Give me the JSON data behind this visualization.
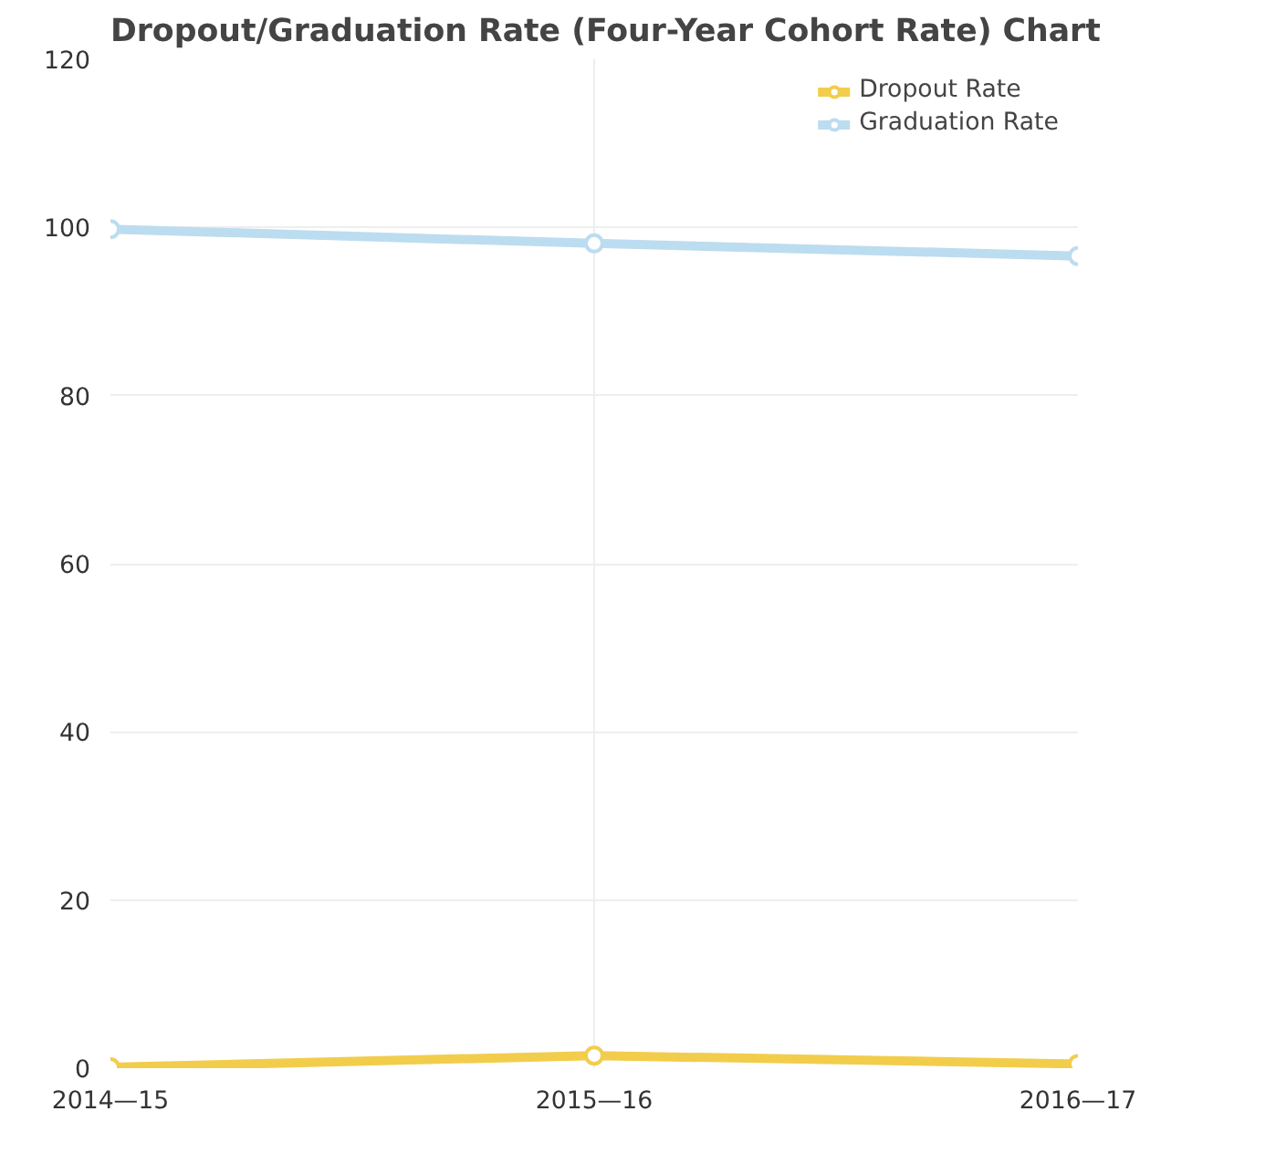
{
  "chart_data": {
    "type": "line",
    "title": "Dropout/Graduation Rate (Four-Year Cohort Rate) Chart",
    "categories": [
      "2014—15",
      "2015—16",
      "2016—17"
    ],
    "series": [
      {
        "name": "Dropout Rate",
        "color": "#f2cd4c",
        "values": [
          0.1,
          1.5,
          0.5
        ]
      },
      {
        "name": "Graduation Rate",
        "color": "#bcdcf0",
        "values": [
          99.8,
          98.1,
          96.6
        ]
      }
    ],
    "ylim": [
      0,
      120
    ],
    "yticks": [
      0,
      20,
      40,
      60,
      80,
      100,
      120
    ],
    "grid": true,
    "legend": "top right",
    "marker": "circle",
    "line_style": "solid"
  }
}
